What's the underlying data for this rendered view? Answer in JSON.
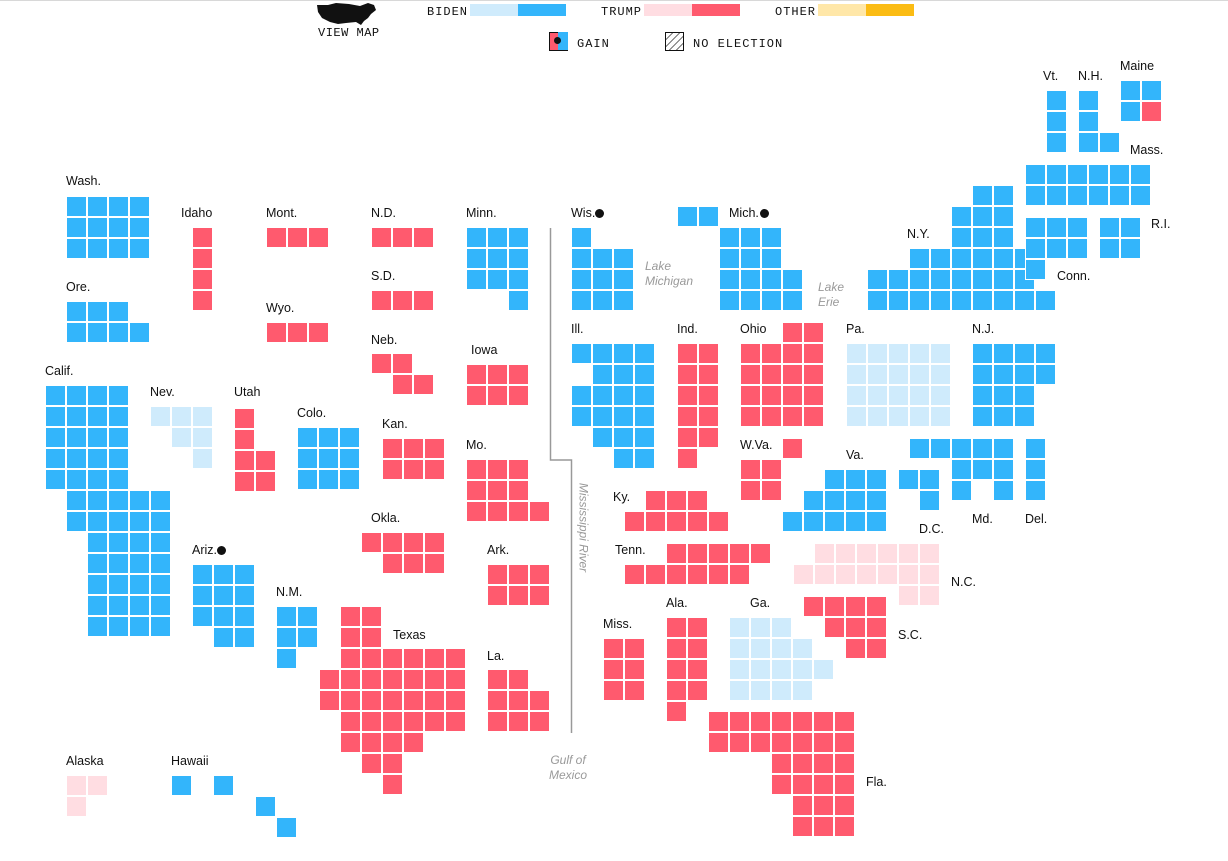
{
  "view_map": {
    "label": "VIEW MAP",
    "icon": "us-map-icon"
  },
  "legend": {
    "biden": "BIDEN",
    "trump": "TRUMP",
    "other": "OTHER",
    "gain": "GAIN",
    "no_election": "NO ELECTION"
  },
  "colors": {
    "biden_light": "#cfebfc",
    "biden_dark": "#33b5fb",
    "trump_light": "#ffdde2",
    "trump_dark": "#ff5a6e",
    "other_light": "#ffe7a8",
    "other_dark": "#fbbc14"
  },
  "geo_labels": {
    "lake_michigan": "Lake Michigan",
    "lake_erie": "Lake Erie",
    "mississippi": "Mississippi River",
    "gulf": "Gulf of Mexico"
  },
  "states": {
    "WA": {
      "label": "Wash.",
      "winner": "biden",
      "level": "dark",
      "gain": false
    },
    "OR": {
      "label": "Ore.",
      "winner": "biden",
      "level": "dark",
      "gain": false
    },
    "CA": {
      "label": "Calif.",
      "winner": "biden",
      "level": "dark",
      "gain": false
    },
    "ID": {
      "label": "Idaho",
      "winner": "trump",
      "level": "dark",
      "gain": false
    },
    "NV": {
      "label": "Nev.",
      "winner": "biden",
      "level": "light",
      "gain": false
    },
    "MT": {
      "label": "Mont.",
      "winner": "trump",
      "level": "dark",
      "gain": false
    },
    "WY": {
      "label": "Wyo.",
      "winner": "trump",
      "level": "dark",
      "gain": false
    },
    "UT": {
      "label": "Utah",
      "winner": "trump",
      "level": "dark",
      "gain": false
    },
    "CO": {
      "label": "Colo.",
      "winner": "biden",
      "level": "dark",
      "gain": false
    },
    "AZ": {
      "label": "Ariz.",
      "winner": "biden",
      "level": "dark",
      "gain": true
    },
    "NM": {
      "label": "N.M.",
      "winner": "biden",
      "level": "dark",
      "gain": false
    },
    "ND": {
      "label": "N.D.",
      "winner": "trump",
      "level": "dark",
      "gain": false
    },
    "SD": {
      "label": "S.D.",
      "winner": "trump",
      "level": "dark",
      "gain": false
    },
    "NE": {
      "label": "Neb.",
      "winner": "trump",
      "level": "dark",
      "gain": false
    },
    "KS": {
      "label": "Kan.",
      "winner": "trump",
      "level": "dark",
      "gain": false
    },
    "OK": {
      "label": "Okla.",
      "winner": "trump",
      "level": "dark",
      "gain": false
    },
    "TX": {
      "label": "Texas",
      "winner": "trump",
      "level": "dark",
      "gain": false
    },
    "MN": {
      "label": "Minn.",
      "winner": "biden",
      "level": "dark",
      "gain": false
    },
    "IA": {
      "label": "Iowa",
      "winner": "trump",
      "level": "dark",
      "gain": false
    },
    "MO": {
      "label": "Mo.",
      "winner": "trump",
      "level": "dark",
      "gain": false
    },
    "AR": {
      "label": "Ark.",
      "winner": "trump",
      "level": "dark",
      "gain": false
    },
    "LA": {
      "label": "La.",
      "winner": "trump",
      "level": "dark",
      "gain": false
    },
    "WI": {
      "label": "Wis.",
      "winner": "biden",
      "level": "dark",
      "gain": true
    },
    "MI": {
      "label": "Mich.",
      "winner": "biden",
      "level": "dark",
      "gain": true
    },
    "IL": {
      "label": "Ill.",
      "winner": "biden",
      "level": "dark",
      "gain": false
    },
    "IN": {
      "label": "Ind.",
      "winner": "trump",
      "level": "dark",
      "gain": false
    },
    "OH": {
      "label": "Ohio",
      "winner": "trump",
      "level": "dark",
      "gain": false
    },
    "KY": {
      "label": "Ky.",
      "winner": "trump",
      "level": "dark",
      "gain": false
    },
    "TN": {
      "label": "Tenn.",
      "winner": "trump",
      "level": "dark",
      "gain": false
    },
    "MS": {
      "label": "Miss.",
      "winner": "trump",
      "level": "dark",
      "gain": false
    },
    "AL": {
      "label": "Ala.",
      "winner": "trump",
      "level": "dark",
      "gain": false
    },
    "GA": {
      "label": "Ga.",
      "winner": "biden",
      "level": "light",
      "gain": false
    },
    "FL": {
      "label": "Fla.",
      "winner": "trump",
      "level": "dark",
      "gain": false
    },
    "SC": {
      "label": "S.C.",
      "winner": "trump",
      "level": "dark",
      "gain": false
    },
    "NC": {
      "label": "N.C.",
      "winner": "trump",
      "level": "light",
      "gain": false
    },
    "VA": {
      "label": "Va.",
      "winner": "biden",
      "level": "dark",
      "gain": false
    },
    "WV": {
      "label": "W.Va.",
      "winner": "trump",
      "level": "dark",
      "gain": false
    },
    "PA": {
      "label": "Pa.",
      "winner": "biden",
      "level": "light",
      "gain": false
    },
    "NY": {
      "label": "N.Y.",
      "winner": "biden",
      "level": "dark",
      "gain": false
    },
    "NJ": {
      "label": "N.J.",
      "winner": "biden",
      "level": "dark",
      "gain": false
    },
    "DE": {
      "label": "Del.",
      "winner": "biden",
      "level": "dark",
      "gain": false
    },
    "MD": {
      "label": "Md.",
      "winner": "biden",
      "level": "dark",
      "gain": false
    },
    "DC": {
      "label": "D.C.",
      "winner": "biden",
      "level": "dark",
      "gain": false
    },
    "CT": {
      "label": "Conn.",
      "winner": "biden",
      "level": "dark",
      "gain": false
    },
    "RI": {
      "label": "R.I.",
      "winner": "biden",
      "level": "dark",
      "gain": false
    },
    "MA": {
      "label": "Mass.",
      "winner": "biden",
      "level": "dark",
      "gain": false
    },
    "VT": {
      "label": "Vt.",
      "winner": "biden",
      "level": "dark",
      "gain": false
    },
    "NH": {
      "label": "N.H.",
      "winner": "biden",
      "level": "dark",
      "gain": false
    },
    "ME": {
      "label": "Maine",
      "winner": "biden",
      "level": "dark",
      "gain": false,
      "split_trump_votes": 1
    },
    "AK": {
      "label": "Alaska",
      "winner": "trump",
      "level": "light",
      "gain": false
    },
    "HI": {
      "label": "Hawaii",
      "winner": "biden",
      "level": "dark",
      "gain": false
    }
  }
}
